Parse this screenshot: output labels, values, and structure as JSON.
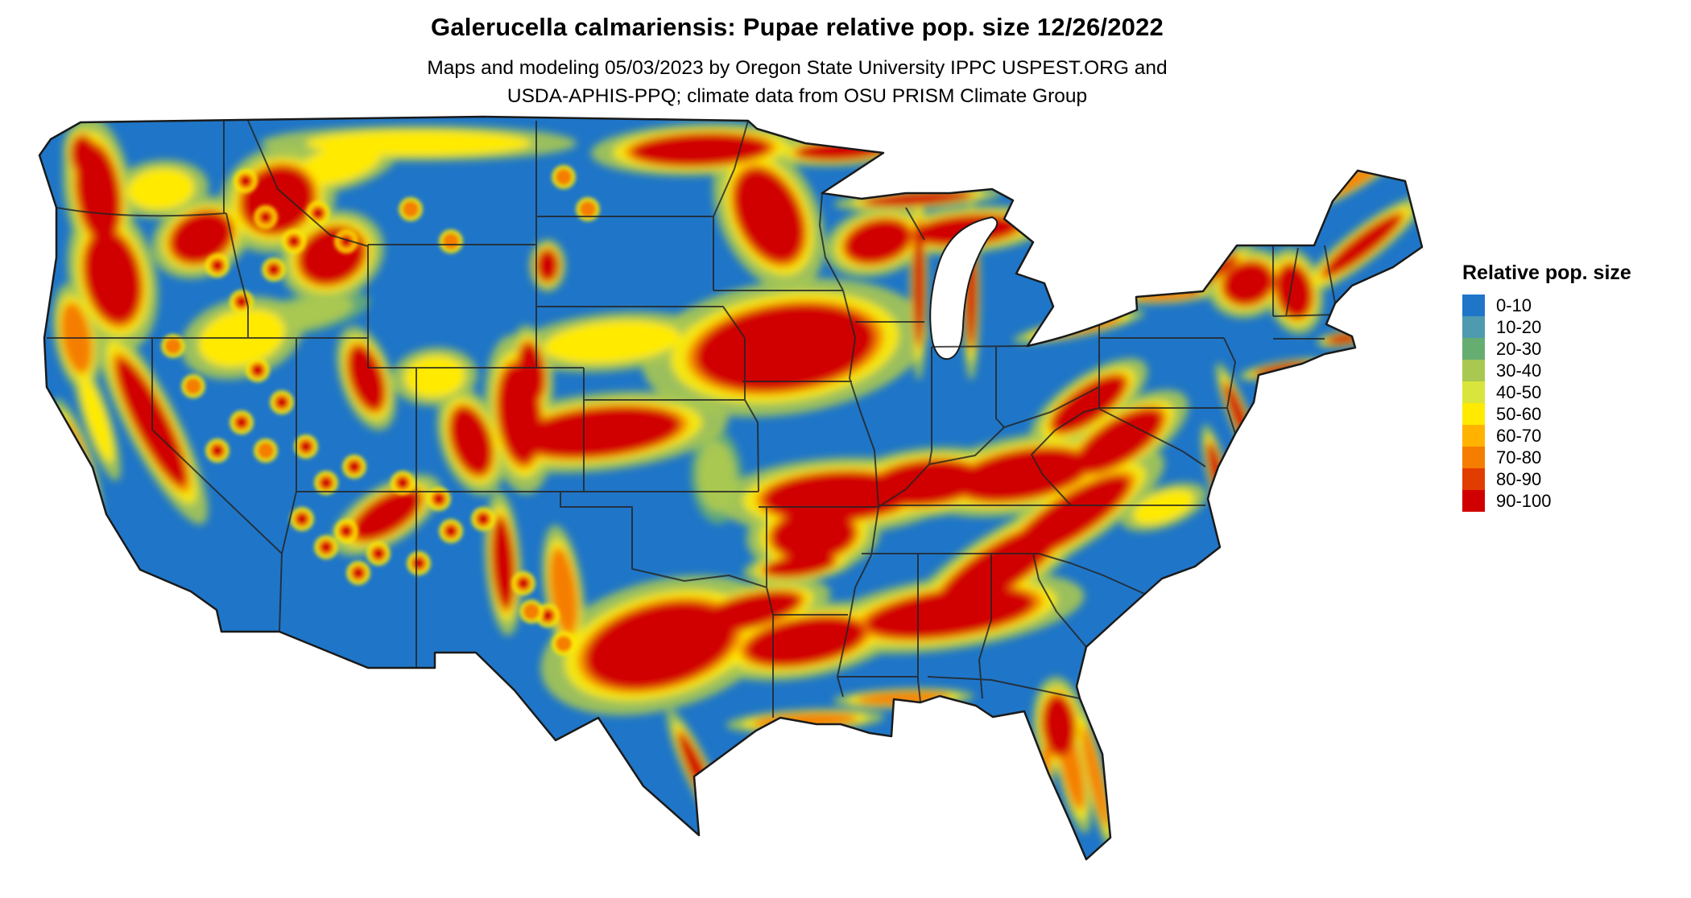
{
  "header": {
    "title": "Galerucella calmariensis: Pupae relative pop. size 12/26/2022",
    "subtitle_lines": [
      "Maps and modeling 05/03/2023 by Oregon State University IPPC USPEST.ORG and",
      "USDA-APHIS-PPQ; climate data from OSU PRISM Climate Group"
    ]
  },
  "legend": {
    "title": "Relative pop. size",
    "entries": [
      {
        "label": "0-10",
        "color": "#1F76C8"
      },
      {
        "label": "10-20",
        "color": "#4E9BB0"
      },
      {
        "label": "20-30",
        "color": "#66AD72"
      },
      {
        "label": "30-40",
        "color": "#A9C851"
      },
      {
        "label": "40-50",
        "color": "#D9E53C"
      },
      {
        "label": "50-60",
        "color": "#FFEA00"
      },
      {
        "label": "60-70",
        "color": "#FFB300"
      },
      {
        "label": "70-80",
        "color": "#F57E00"
      },
      {
        "label": "80-90",
        "color": "#E23D00"
      },
      {
        "label": "90-100",
        "color": "#D10000"
      }
    ]
  },
  "map": {
    "base_color": "#1F76C8",
    "border_color": "#1A1A1A",
    "background": "#FFFFFF"
  }
}
